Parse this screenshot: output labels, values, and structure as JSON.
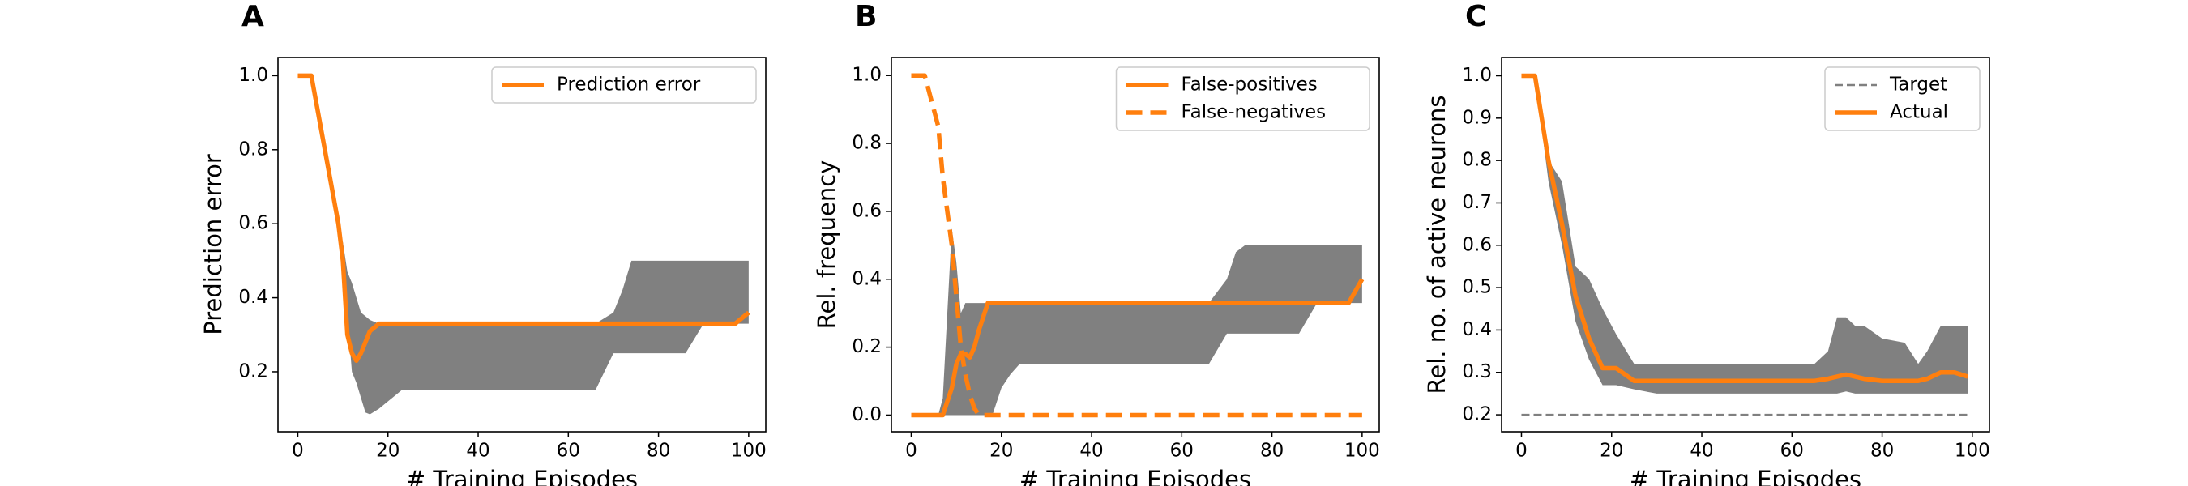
{
  "chart_data": [
    {
      "type": "line",
      "panel_label": "A",
      "xlabel": "# Training Episodes",
      "ylabel": "Prediction error",
      "x": [
        0,
        3,
        6,
        9,
        10,
        11,
        12,
        13,
        14,
        15,
        16,
        18,
        20,
        23,
        66,
        70,
        72,
        74,
        86,
        90,
        97,
        100
      ],
      "series": [
        {
          "name": "Prediction error",
          "color": "#ff7f0e",
          "linestyle": "solid",
          "values": [
            1,
            1,
            0.8,
            0.6,
            0.5,
            0.3,
            0.25,
            0.23,
            0.25,
            0.28,
            0.31,
            0.33,
            0.33,
            0.33,
            0.33,
            0.33,
            0.33,
            0.33,
            0.33,
            0.33,
            0.33,
            0.36
          ]
        }
      ],
      "band": {
        "color": "#808080",
        "upper": [
          1,
          1,
          0.8,
          0.6,
          0.55,
          0.47,
          0.44,
          0.4,
          0.36,
          0.35,
          0.34,
          0.33,
          0.33,
          0.33,
          0.33,
          0.36,
          0.42,
          0.5,
          0.5,
          0.5,
          0.5,
          0.5
        ],
        "lower": [
          1,
          1,
          0.8,
          0.6,
          0.5,
          0.35,
          0.2,
          0.17,
          0.13,
          0.09,
          0.085,
          0.1,
          0.12,
          0.15,
          0.15,
          0.25,
          0.25,
          0.25,
          0.25,
          0.33,
          0.33,
          0.33
        ]
      },
      "xlim": [
        -4.4,
        103.8
      ],
      "xticks": [
        0,
        20,
        40,
        60,
        80,
        100
      ],
      "ylim": [
        0.038,
        1.049
      ],
      "yticks": [
        0.2,
        0.4,
        0.6,
        0.8,
        {
          "value": 1,
          "label": "1.0"
        }
      ],
      "legend": "upper right"
    },
    {
      "type": "line",
      "panel_label": "B",
      "xlabel": "# Training Episodes",
      "ylabel": "Rel. frequency",
      "x": [
        0,
        3,
        6,
        7,
        9,
        10,
        11,
        12,
        13,
        14,
        15,
        17,
        18,
        20,
        22,
        24,
        66,
        70,
        72,
        74,
        86,
        90,
        97,
        100
      ],
      "series": [
        {
          "name": "False-positives",
          "color": "#ff7f0e",
          "linestyle": "solid",
          "values": [
            0,
            0,
            0,
            0,
            0.08,
            0.15,
            0.18,
            0.18,
            0.17,
            0.2,
            0.25,
            0.33,
            0.33,
            0.33,
            0.33,
            0.33,
            0.33,
            0.33,
            0.33,
            0.33,
            0.33,
            0.33,
            0.33,
            0.4
          ]
        },
        {
          "name": "False-negatives",
          "color": "#ff7f0e",
          "linestyle": "dashed",
          "values": [
            1,
            1,
            0.85,
            0.7,
            0.5,
            0.35,
            0.2,
            0.12,
            0.06,
            0.02,
            0,
            0,
            0,
            0,
            0,
            0,
            0,
            0,
            0,
            0,
            0,
            0,
            0,
            0
          ]
        }
      ],
      "band": {
        "color": "#808080",
        "upper": [
          0,
          0,
          0,
          0.05,
          0.55,
          0.45,
          0.3,
          0.33,
          0.33,
          0.33,
          0.33,
          0.33,
          0.33,
          0.33,
          0.33,
          0.33,
          0.33,
          0.4,
          0.48,
          0.5,
          0.5,
          0.5,
          0.5,
          0.5
        ],
        "lower": [
          0,
          0,
          0,
          0,
          0,
          0,
          0,
          0,
          0,
          0,
          0,
          0,
          0,
          0.08,
          0.12,
          0.15,
          0.15,
          0.24,
          0.24,
          0.24,
          0.24,
          0.33,
          0.33,
          0.33
        ]
      },
      "xlim": [
        -4.4,
        103.8
      ],
      "xticks": [
        0,
        20,
        40,
        60,
        80,
        100
      ],
      "ylim": [
        -0.049,
        1.053
      ],
      "yticks": [
        {
          "value": 0,
          "label": "0.0"
        },
        0.2,
        0.4,
        0.6,
        0.8,
        {
          "value": 1,
          "label": "1.0"
        }
      ],
      "legend": "upper right"
    },
    {
      "type": "line",
      "panel_label": "C",
      "xlabel": "# Training Episodes",
      "ylabel": "Rel. no. of active neurons",
      "x": [
        0,
        3,
        6,
        9,
        12,
        15,
        18,
        21,
        25,
        30,
        60,
        65,
        68,
        70,
        72,
        74,
        76,
        80,
        85,
        88,
        90,
        93,
        96,
        99
      ],
      "series": [
        {
          "name": "Target",
          "color": "#808080",
          "linestyle": "dashed",
          "values": [
            0.2,
            0.2,
            0.2,
            0.2,
            0.2,
            0.2,
            0.2,
            0.2,
            0.2,
            0.2,
            0.2,
            0.2,
            0.2,
            0.2,
            0.2,
            0.2,
            0.2,
            0.2,
            0.2,
            0.2,
            0.2,
            0.2,
            0.2,
            0.2
          ]
        },
        {
          "name": "Actual",
          "color": "#ff7f0e",
          "linestyle": "solid",
          "values": [
            1,
            1,
            0.8,
            0.65,
            0.48,
            0.38,
            0.31,
            0.31,
            0.28,
            0.28,
            0.28,
            0.28,
            0.285,
            0.29,
            0.295,
            0.29,
            0.285,
            0.28,
            0.28,
            0.28,
            0.285,
            0.3,
            0.3,
            0.29
          ]
        }
      ],
      "band": {
        "color": "#808080",
        "upper": [
          1,
          1,
          0.8,
          0.75,
          0.55,
          0.52,
          0.45,
          0.39,
          0.32,
          0.32,
          0.32,
          0.32,
          0.35,
          0.43,
          0.43,
          0.41,
          0.41,
          0.38,
          0.37,
          0.32,
          0.35,
          0.41,
          0.41,
          0.41
        ],
        "lower": [
          1,
          1,
          0.75,
          0.6,
          0.42,
          0.33,
          0.27,
          0.27,
          0.26,
          0.25,
          0.25,
          0.25,
          0.25,
          0.25,
          0.255,
          0.25,
          0.25,
          0.25,
          0.25,
          0.25,
          0.25,
          0.25,
          0.25,
          0.25
        ]
      },
      "xlim": [
        -4.4,
        103.8
      ],
      "xticks": [
        0,
        20,
        40,
        60,
        80,
        100
      ],
      "ylim": [
        0.16,
        1.043
      ],
      "yticks": [
        0.2,
        0.3,
        0.4,
        0.5,
        0.6,
        0.7,
        0.8,
        0.9,
        {
          "value": 1,
          "label": "1.0"
        }
      ],
      "legend": "upper right"
    }
  ]
}
